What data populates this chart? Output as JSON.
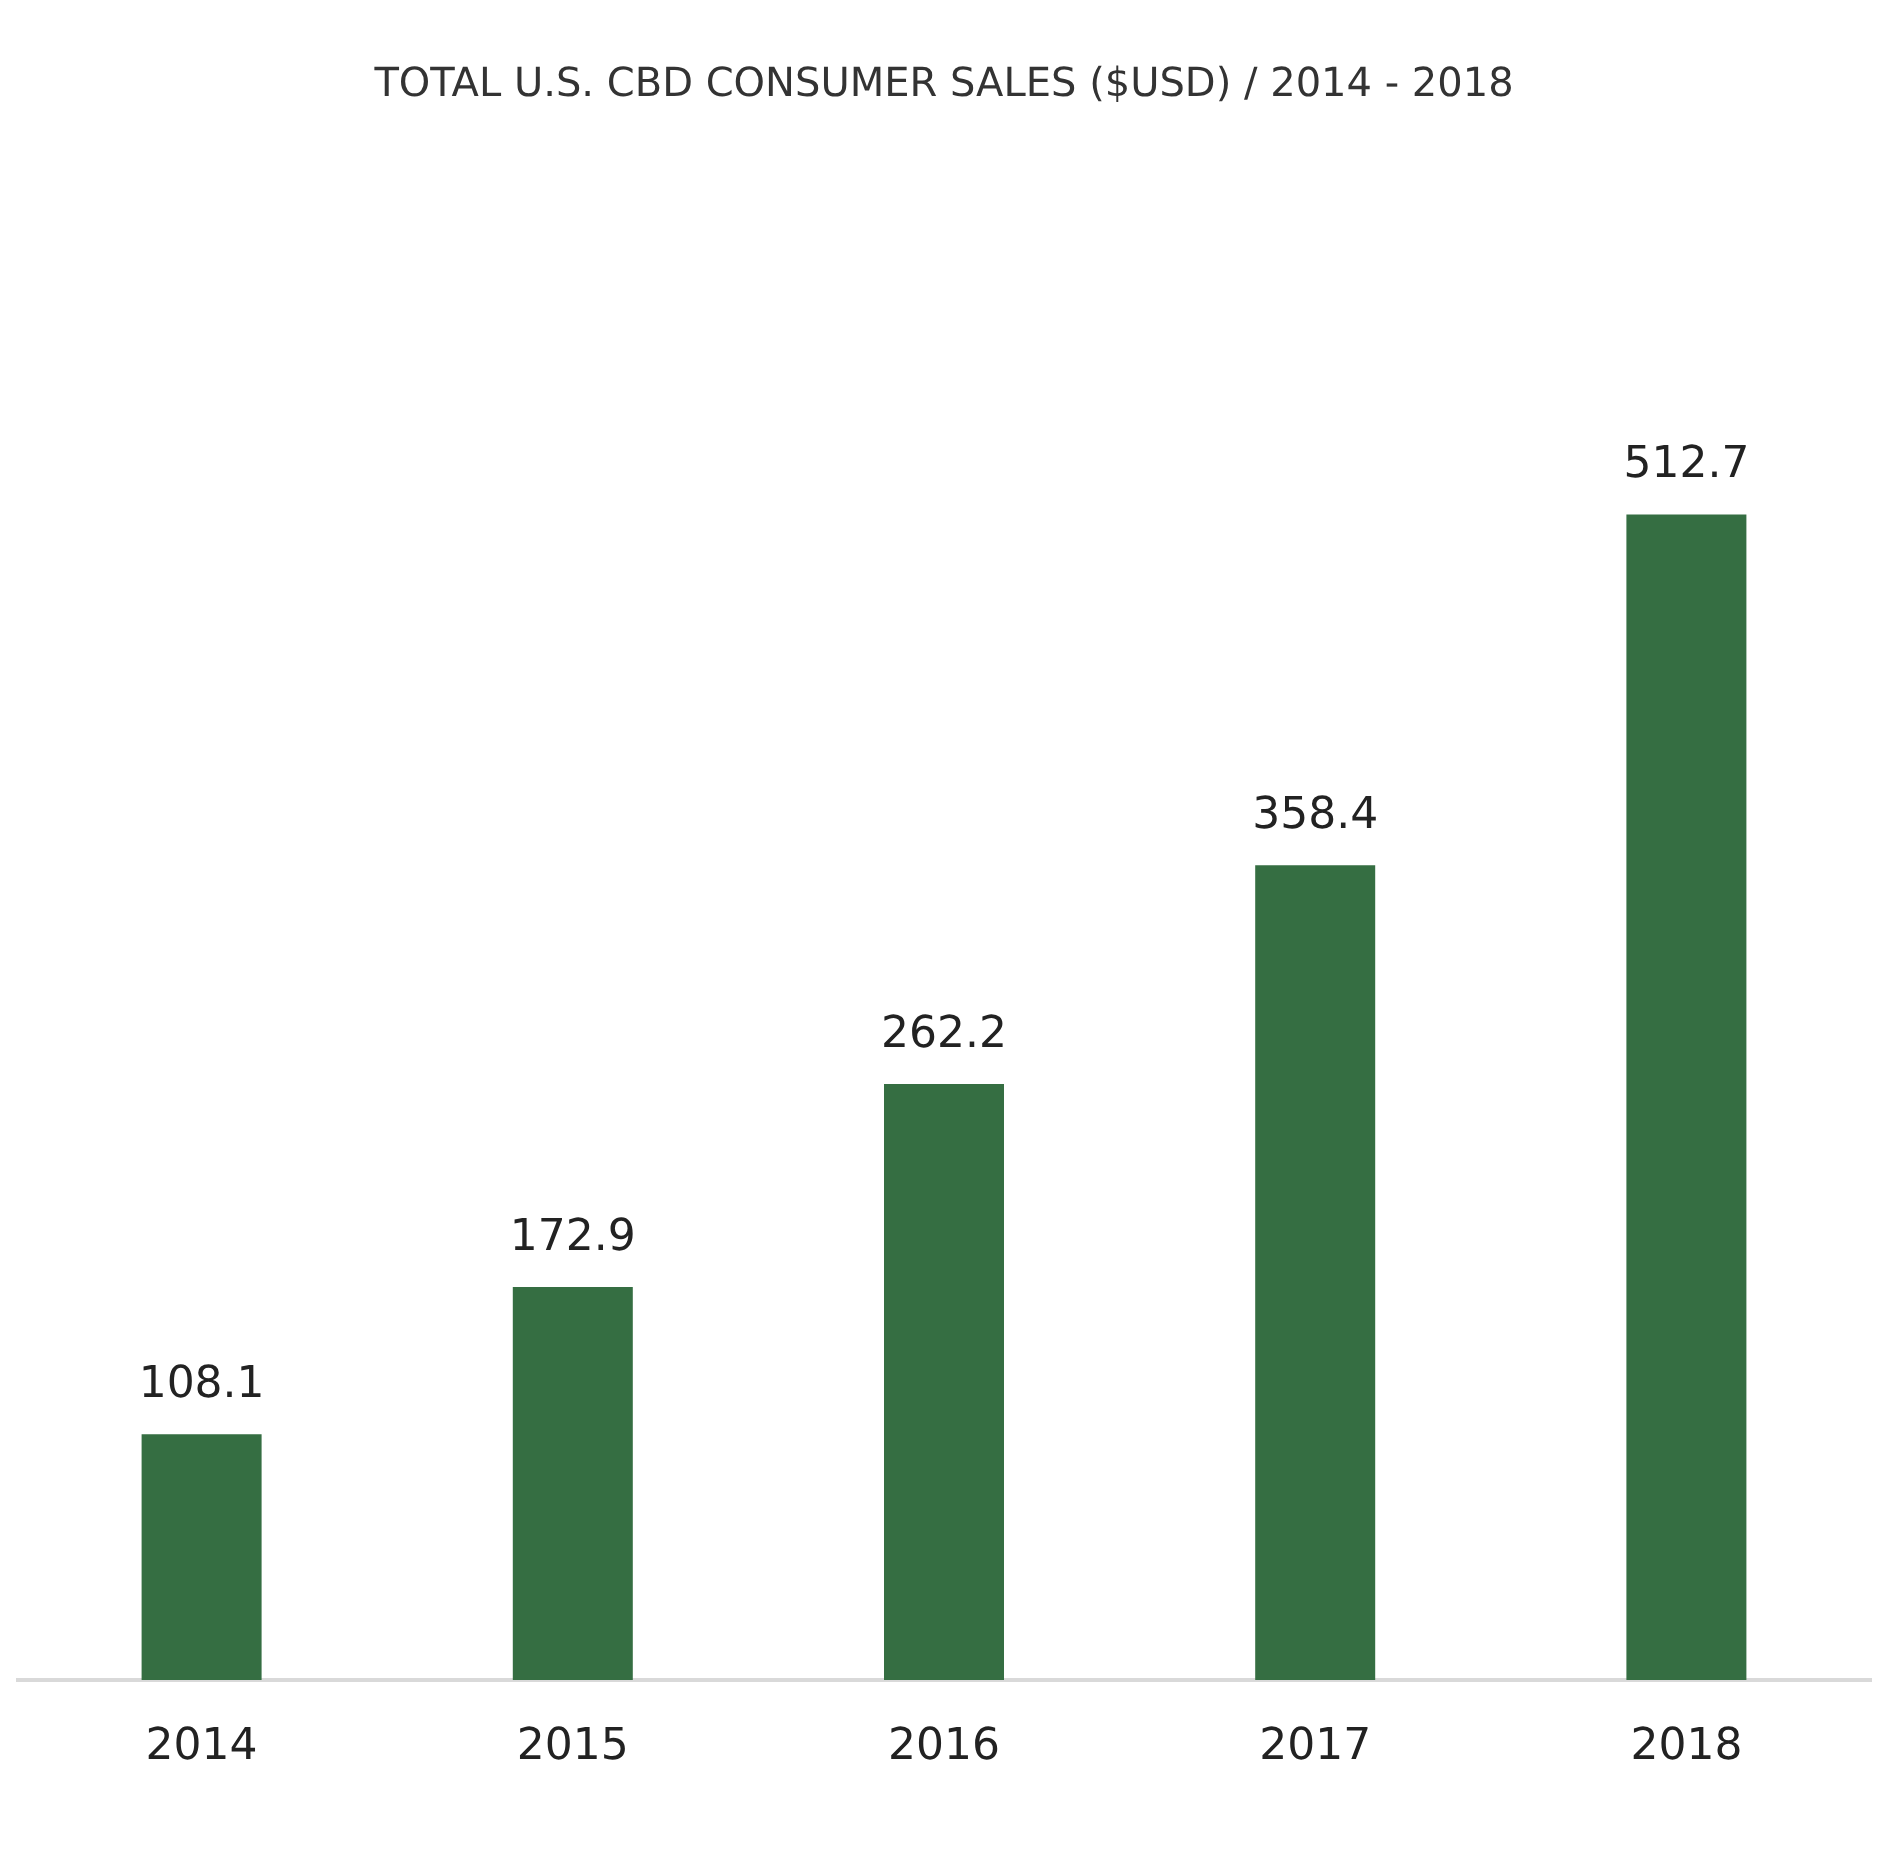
{
  "chart_data": {
    "type": "bar",
    "title": "TOTAL U.S. CBD CONSUMER SALES ($USD) / 2014 - 2018",
    "categories": [
      "2014",
      "2015",
      "2016",
      "2017",
      "2018"
    ],
    "values": [
      108.1,
      172.9,
      262.2,
      358.4,
      512.7
    ],
    "color": "#356e42",
    "data_labels": true
  }
}
